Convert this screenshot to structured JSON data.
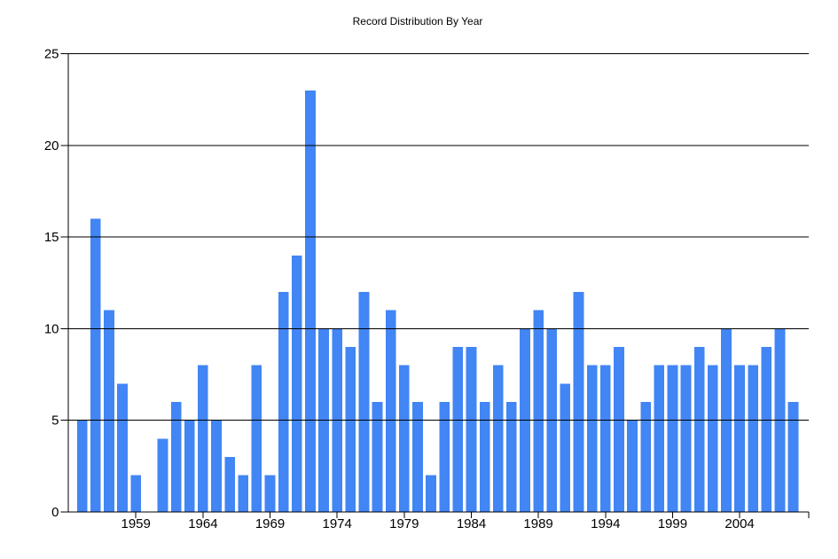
{
  "page": {
    "background": "#ffffff"
  },
  "chart_data": {
    "type": "bar",
    "title": "Record Distribution By Year",
    "xlabel": "",
    "ylabel": "",
    "x": [
      1955,
      1956,
      1957,
      1958,
      1959,
      1960,
      1961,
      1962,
      1963,
      1964,
      1965,
      1966,
      1967,
      1968,
      1969,
      1970,
      1971,
      1972,
      1973,
      1974,
      1975,
      1976,
      1977,
      1978,
      1979,
      1980,
      1981,
      1982,
      1983,
      1984,
      1985,
      1986,
      1987,
      1988,
      1989,
      1990,
      1991,
      1992,
      1993,
      1994,
      1995,
      1996,
      1997,
      1998,
      1999,
      2000,
      2001,
      2002,
      2003,
      2004,
      2005,
      2006,
      2007,
      2008
    ],
    "values": [
      5,
      16,
      11,
      7,
      2,
      0,
      4,
      6,
      5,
      8,
      5,
      3,
      2,
      8,
      2,
      12,
      14,
      23,
      10,
      10,
      9,
      12,
      6,
      11,
      8,
      6,
      2,
      6,
      9,
      9,
      6,
      8,
      6,
      10,
      11,
      10,
      7,
      12,
      8,
      8,
      9,
      5,
      6,
      8,
      8,
      8,
      9,
      8,
      10,
      8,
      8,
      9,
      10,
      6
    ],
    "xticks": [
      1959,
      1964,
      1969,
      1974,
      1979,
      1984,
      1989,
      1994,
      1999,
      2004
    ],
    "yticks": [
      0,
      5,
      10,
      15,
      20,
      25
    ],
    "xlim": [
      1954,
      2009
    ],
    "ylim": [
      0,
      25
    ],
    "grid": "horizontal",
    "legend": "none",
    "bar_color": "#4285f4",
    "axis_color": "#000000",
    "label_color": "#000000",
    "background": "#ffffff"
  }
}
